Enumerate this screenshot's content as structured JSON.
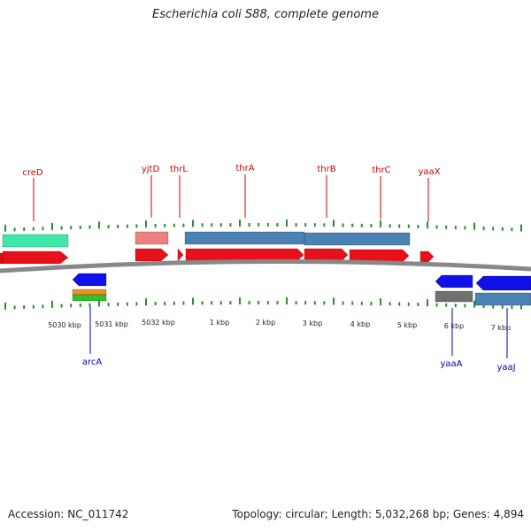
{
  "title": "Escherichia coli S88, complete genome",
  "footer": {
    "accession": "Accession: NC_011742",
    "summary": "Topology: circular; Length: 5,032,268 bp; Genes: 4,894"
  },
  "colors": {
    "forward_gene": "#e8101a",
    "reverse_gene": "#1010e8",
    "forward_label": "#cc0000",
    "reverse_label": "#0000aa",
    "tick": "#2e8b2e",
    "backbone": "#888888",
    "cds_blue": "#4a82b4",
    "cds_pink": "#f08080",
    "cds_teal": "#3ee8a8",
    "cds_grey": "#707070",
    "orange": "#f0901a",
    "green": "#30c030"
  },
  "tick_labels": [
    "5030 kbp",
    "5031 kbp",
    "5032 kbp",
    "1 kbp",
    "2 kbp",
    "3 kbp",
    "4 kbp",
    "5 kbp",
    "6 kbp",
    "7 kbp"
  ],
  "forward_genes": [
    "creD",
    "yjtD",
    "thrL",
    "thrA",
    "thrB",
    "thrC",
    "yaaX"
  ],
  "reverse_genes": [
    "arcA",
    "yaaA",
    "yaaJ"
  ]
}
